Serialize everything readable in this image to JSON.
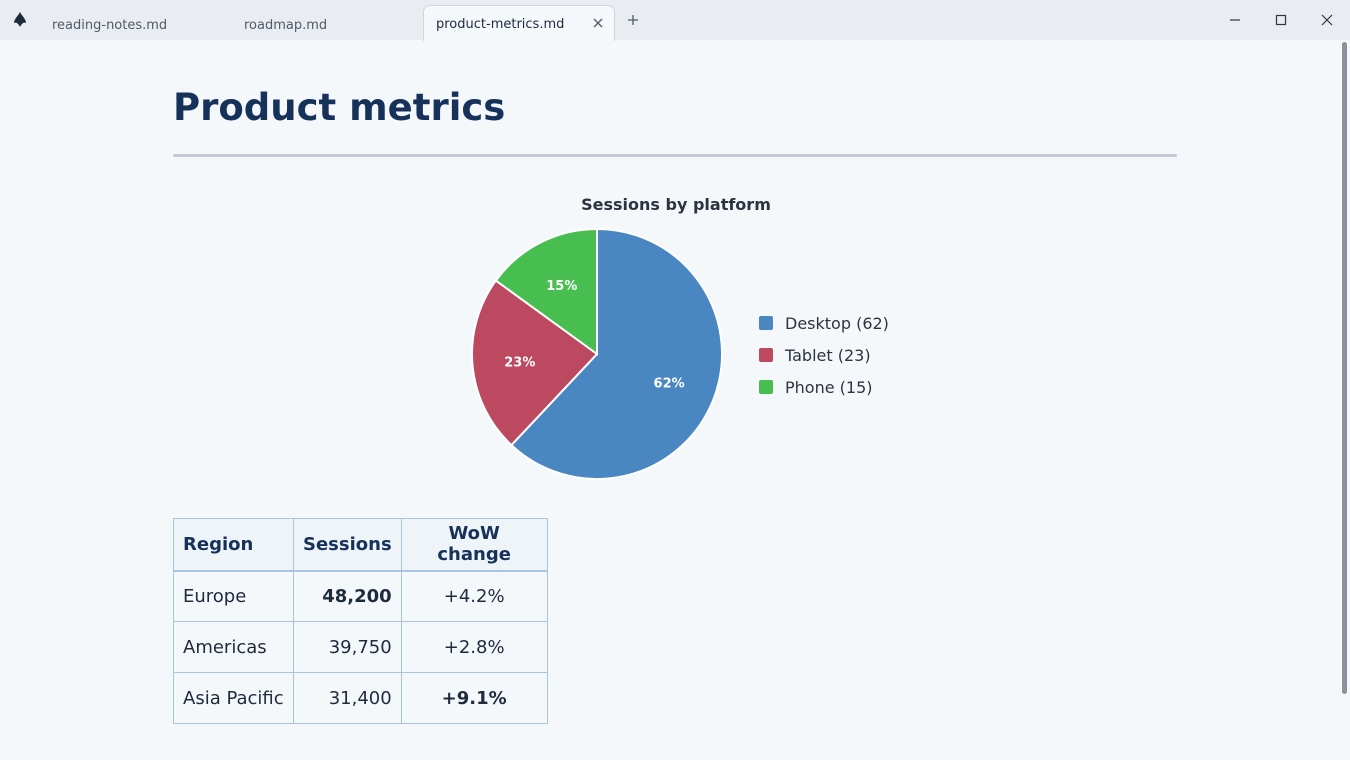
{
  "tabs": [
    {
      "label": "reading-notes.md"
    },
    {
      "label": "roadmap.md"
    },
    {
      "label": "product-metrics.md",
      "active": true
    }
  ],
  "icons": {
    "app": "app-logo-icon",
    "close_tab": "close-icon",
    "new_tab": "plus-icon",
    "minimize": "minimize-icon",
    "maximize": "maximize-icon",
    "close_window": "close-icon"
  },
  "document": {
    "title": "Product metrics"
  },
  "chart_data": {
    "type": "pie",
    "title": "Sessions by platform",
    "legend_position": "right",
    "slices": [
      {
        "label": "Desktop (62)",
        "name": "Desktop",
        "value": 62,
        "percent_label": "62%",
        "color": "#4a86c1"
      },
      {
        "label": "Tablet (23)",
        "name": "Tablet",
        "value": 23,
        "percent_label": "23%",
        "color": "#bd4960"
      },
      {
        "label": "Phone (15)",
        "name": "Phone",
        "value": 15,
        "percent_label": "15%",
        "color": "#49be50"
      }
    ]
  },
  "table": {
    "headers": [
      "Region",
      "Sessions",
      "WoW change"
    ],
    "rows": [
      {
        "region": "Europe",
        "sessions": "48,200",
        "wow": "+4.2%",
        "sessions_bold": true,
        "wow_bold": false
      },
      {
        "region": "Americas",
        "sessions": "39,750",
        "wow": "+2.8%",
        "sessions_bold": false,
        "wow_bold": false
      },
      {
        "region": "Asia Pacific",
        "sessions": "31,400",
        "wow": "+9.1%",
        "sessions_bold": false,
        "wow_bold": true
      }
    ]
  },
  "colors": {
    "title": "#17325a",
    "background": "#f5f8fb",
    "table_border": "#a7c5e2"
  }
}
